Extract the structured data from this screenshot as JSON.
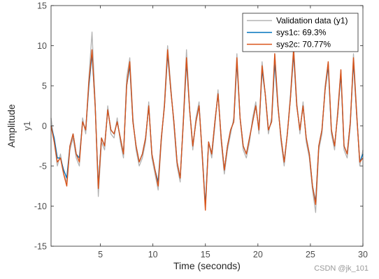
{
  "chart_data": {
    "type": "line",
    "xlabel": "Time (seconds)",
    "ylabel": "Amplitude",
    "channel_label": "y1",
    "xlim": [
      0.3,
      30
    ],
    "ylim": [
      -15,
      15
    ],
    "xticks": [
      5,
      10,
      15,
      20,
      25,
      30
    ],
    "yticks": [
      -15,
      -10,
      -5,
      0,
      5,
      10,
      15
    ],
    "grid": false,
    "legend_position": "top-right",
    "series": [
      {
        "name": "Validation data (y1)",
        "color": "#b3b3b3",
        "x": [
          0.3,
          0.6,
          0.9,
          1.2,
          1.5,
          1.8,
          2.1,
          2.4,
          2.7,
          3.0,
          3.3,
          3.6,
          3.9,
          4.2,
          4.5,
          4.8,
          5.1,
          5.4,
          5.7,
          6.0,
          6.3,
          6.6,
          6.9,
          7.2,
          7.5,
          7.8,
          8.1,
          8.4,
          8.7,
          9.0,
          9.3,
          9.6,
          9.9,
          10.2,
          10.5,
          10.8,
          11.1,
          11.4,
          11.7,
          12.0,
          12.3,
          12.6,
          12.9,
          13.2,
          13.5,
          13.8,
          14.1,
          14.4,
          14.7,
          15.0,
          15.3,
          15.6,
          15.9,
          16.2,
          16.5,
          16.8,
          17.1,
          17.4,
          17.7,
          18.0,
          18.3,
          18.6,
          18.9,
          19.2,
          19.5,
          19.8,
          20.1,
          20.4,
          20.7,
          21.0,
          21.3,
          21.6,
          21.9,
          22.2,
          22.5,
          22.8,
          23.1,
          23.4,
          23.7,
          24.0,
          24.3,
          24.6,
          24.9,
          25.2,
          25.5,
          25.8,
          26.1,
          26.4,
          26.7,
          27.0,
          27.3,
          27.6,
          27.9,
          28.2,
          28.5,
          28.8,
          29.1,
          29.4,
          29.7,
          30.0
        ],
        "values": [
          1,
          -2,
          -5,
          -3.5,
          -6,
          -7,
          -3,
          -1.5,
          -4,
          -5,
          1,
          -1,
          6,
          11.7,
          3,
          -8.8,
          -2,
          -3,
          2.5,
          -1,
          -1.5,
          1,
          -2,
          -4,
          6,
          8.5,
          1,
          -3,
          -5,
          -4,
          -2,
          3,
          -4,
          -6,
          -8,
          -2,
          3,
          10,
          5,
          0,
          -5,
          -7,
          1,
          9.5,
          2,
          -3,
          1,
          3,
          -4,
          -10,
          -2,
          -4,
          0,
          4.5,
          -2,
          -6,
          -3,
          -1,
          1,
          9,
          1,
          -3,
          -4,
          -2,
          1,
          3,
          -1,
          8,
          4,
          -1,
          1,
          9,
          3,
          -2,
          -5,
          -1,
          4,
          10,
          3,
          -1,
          3,
          -2,
          -4,
          -8,
          -10.8,
          -3,
          -1,
          5,
          8,
          -1,
          -3,
          2,
          7,
          -3,
          -4,
          0,
          9,
          2,
          -5,
          -3
        ]
      },
      {
        "name": "sys1c: 69.3%",
        "color": "#0072bd",
        "x": [
          0.3,
          0.6,
          0.9,
          1.2,
          1.5,
          1.8,
          2.1,
          2.4,
          2.7,
          3.0,
          3.3,
          3.6,
          3.9,
          4.2,
          4.5,
          4.8,
          5.1,
          5.4,
          5.7,
          6.0,
          6.3,
          6.6,
          6.9,
          7.2,
          7.5,
          7.8,
          8.1,
          8.4,
          8.7,
          9.0,
          9.3,
          9.6,
          9.9,
          10.2,
          10.5,
          10.8,
          11.1,
          11.4,
          11.7,
          12.0,
          12.3,
          12.6,
          12.9,
          13.2,
          13.5,
          13.8,
          14.1,
          14.4,
          14.7,
          15.0,
          15.3,
          15.6,
          15.9,
          16.2,
          16.5,
          16.8,
          17.1,
          17.4,
          17.7,
          18.0,
          18.3,
          18.6,
          18.9,
          19.2,
          19.5,
          19.8,
          20.1,
          20.4,
          20.7,
          21.0,
          21.3,
          21.6,
          21.9,
          22.2,
          22.5,
          22.8,
          23.1,
          23.4,
          23.7,
          24.0,
          24.3,
          24.6,
          24.9,
          25.2,
          25.5,
          25.8,
          26.1,
          26.4,
          26.7,
          27.0,
          27.3,
          27.6,
          27.9,
          28.2,
          28.5,
          28.8,
          29.1,
          29.4,
          29.7,
          30.0
        ],
        "values": [
          0,
          -1.5,
          -4,
          -4,
          -5.5,
          -6.5,
          -2.5,
          -1,
          -3.5,
          -4,
          0.5,
          -0.5,
          5,
          9,
          2.5,
          -7.5,
          -1.5,
          -2.5,
          2,
          -0.5,
          -1,
          0.5,
          -1.5,
          -3.5,
          5,
          7.5,
          0.5,
          -2.5,
          -4.5,
          -3.5,
          -1.5,
          2.5,
          -3.5,
          -5.5,
          -7,
          -1.5,
          2.5,
          9,
          4.5,
          0.5,
          -4.5,
          -6.5,
          0.5,
          8,
          2,
          -2.5,
          0.5,
          2.5,
          -3.5,
          -10,
          -2,
          -3.5,
          0.5,
          4,
          -1.5,
          -5.5,
          -2.5,
          -0.5,
          0.5,
          8,
          1,
          -2.5,
          -3.5,
          -1.5,
          0.5,
          2.5,
          -0.5,
          7,
          4,
          -0.5,
          0.5,
          8,
          2.5,
          -1.5,
          -4.5,
          -1,
          3.5,
          9,
          2.5,
          -0.5,
          2.5,
          -1.5,
          -3.5,
          -7.5,
          -9.5,
          -2.5,
          -0.5,
          4.5,
          7.5,
          -0.5,
          -2.5,
          1.5,
          6.5,
          -2.5,
          -3.5,
          0.5,
          8,
          1.5,
          -4.5,
          -3.5
        ]
      },
      {
        "name": "sys2c: 70.77%",
        "color": "#d95319",
        "x": [
          0.3,
          0.6,
          0.9,
          1.2,
          1.5,
          1.8,
          2.1,
          2.4,
          2.7,
          3.0,
          3.3,
          3.6,
          3.9,
          4.2,
          4.5,
          4.8,
          5.1,
          5.4,
          5.7,
          6.0,
          6.3,
          6.6,
          6.9,
          7.2,
          7.5,
          7.8,
          8.1,
          8.4,
          8.7,
          9.0,
          9.3,
          9.6,
          9.9,
          10.2,
          10.5,
          10.8,
          11.1,
          11.4,
          11.7,
          12.0,
          12.3,
          12.6,
          12.9,
          13.2,
          13.5,
          13.8,
          14.1,
          14.4,
          14.7,
          15.0,
          15.3,
          15.6,
          15.9,
          16.2,
          16.5,
          16.8,
          17.1,
          17.4,
          17.7,
          18.0,
          18.3,
          18.6,
          18.9,
          19.2,
          19.5,
          19.8,
          20.1,
          20.4,
          20.7,
          21.0,
          21.3,
          21.6,
          21.9,
          22.2,
          22.5,
          22.8,
          23.1,
          23.4,
          23.7,
          24.0,
          24.3,
          24.6,
          24.9,
          25.2,
          25.5,
          25.8,
          26.1,
          26.4,
          26.7,
          27.0,
          27.3,
          27.6,
          27.9,
          28.2,
          28.5,
          28.8,
          29.1,
          29.4,
          29.7,
          30.0
        ],
        "values": [
          0,
          -2,
          -4.5,
          -4,
          -6,
          -7.5,
          -2.5,
          -1,
          -3.5,
          -4.5,
          0.5,
          -0.5,
          5.5,
          9.5,
          2.5,
          -7.8,
          -1.5,
          -2.5,
          2,
          -0.5,
          -1,
          0.5,
          -1.5,
          -3.5,
          5,
          8,
          0.5,
          -2.5,
          -4.5,
          -3.5,
          -1.5,
          2.5,
          -3.5,
          -5.5,
          -7.5,
          -1.5,
          2.5,
          9.5,
          4.5,
          0.5,
          -4.5,
          -6.5,
          0.5,
          8.5,
          2,
          -2.5,
          0.5,
          2.5,
          -3.5,
          -10.5,
          -2,
          -3.5,
          0.5,
          4,
          -1.5,
          -5.5,
          -2.5,
          -0.5,
          0.5,
          8.5,
          1,
          -2.5,
          -3.5,
          -1.5,
          0.5,
          2.5,
          -0.5,
          7.5,
          4,
          -0.5,
          0.5,
          9,
          2.5,
          -1.5,
          -4.5,
          -1,
          3.5,
          9.5,
          2.5,
          -0.5,
          2.5,
          -1.5,
          -3.5,
          -7.5,
          -9.8,
          -2.5,
          -0.5,
          4.5,
          8,
          -0.5,
          -2.5,
          1.5,
          7,
          -2.5,
          -3.5,
          0.5,
          8.5,
          1.5,
          -4.5,
          -4
        ]
      }
    ]
  },
  "watermark": "CSDN @jk_101"
}
